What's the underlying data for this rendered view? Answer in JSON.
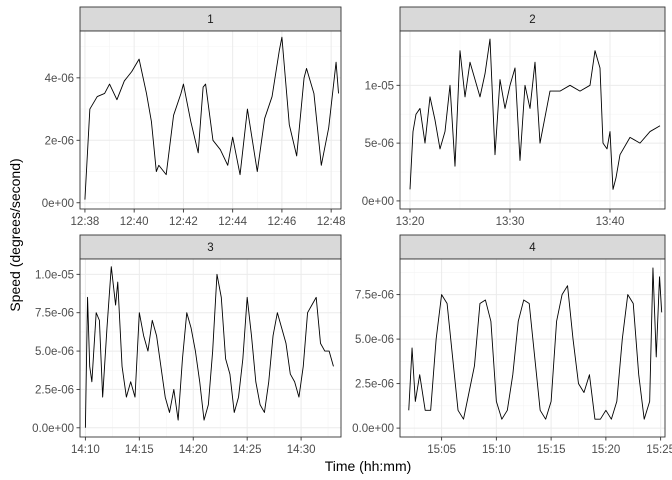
{
  "chart_data": {
    "type": "line",
    "xlabel": "Time (hh:mm)",
    "ylabel": "Speed (degrees/second)",
    "line_color": "#000000",
    "strip_color": "#d9d9d9",
    "panels": [
      {
        "label": "1",
        "xlim": [
          757.8,
          768.4
        ],
        "ylim": [
          -2e-07,
          5.5e-06
        ],
        "x_ticks": [
          758,
          760,
          762,
          764,
          766,
          768
        ],
        "x_tick_labels": [
          "12:38",
          "12:40",
          "12:42",
          "12:44",
          "12:46",
          "12:48"
        ],
        "y_ticks": [
          0,
          2e-06,
          4e-06
        ],
        "y_tick_labels": [
          "0e+00",
          "2e-06",
          "4e-06"
        ],
        "x": [
          758.0,
          758.2,
          758.5,
          758.8,
          759.0,
          759.3,
          759.6,
          759.9,
          760.2,
          760.5,
          760.7,
          760.9,
          761.0,
          761.3,
          761.6,
          761.9,
          762.0,
          762.3,
          762.6,
          762.8,
          762.9,
          763.2,
          763.5,
          763.8,
          764.0,
          764.3,
          764.6,
          764.8,
          765.0,
          765.3,
          765.6,
          765.9,
          766.0,
          766.3,
          766.6,
          766.9,
          767.0,
          767.3,
          767.6,
          767.9,
          768.2,
          768.3
        ],
        "y": [
          1e-07,
          3e-06,
          3.4e-06,
          3.5e-06,
          3.8e-06,
          3.3e-06,
          3.9e-06,
          4.2e-06,
          4.6e-06,
          3.5e-06,
          2.6e-06,
          1e-06,
          1.2e-06,
          9e-07,
          2.8e-06,
          3.5e-06,
          3.8e-06,
          2.6e-06,
          1.6e-06,
          3.7e-06,
          3.8e-06,
          2e-06,
          1.7e-06,
          1.2e-06,
          2.1e-06,
          9e-07,
          3e-06,
          2e-06,
          1e-06,
          2.7e-06,
          3.4e-06,
          4.9e-06,
          5.3e-06,
          2.5e-06,
          1.5e-06,
          4e-06,
          4.3e-06,
          3.5e-06,
          1.2e-06,
          2.4e-06,
          4.5e-06,
          3.5e-06
        ]
      },
      {
        "label": "2",
        "xlim": [
          799.0,
          825.5
        ],
        "ylim": [
          -7e-07,
          1.47e-05
        ],
        "x_ticks": [
          800,
          810,
          820
        ],
        "x_tick_labels": [
          "13:20",
          "13:30",
          "13:40"
        ],
        "y_ticks": [
          0,
          5e-06,
          1e-05
        ],
        "y_tick_labels": [
          "0e+00",
          "5e-06",
          "1e-05"
        ],
        "x": [
          800.0,
          800.3,
          800.6,
          801.0,
          801.5,
          802.0,
          802.5,
          803.0,
          803.5,
          804.0,
          804.5,
          805.0,
          805.5,
          806.0,
          806.5,
          807.0,
          807.5,
          808.0,
          808.5,
          809.0,
          809.5,
          810.0,
          810.5,
          811.0,
          811.5,
          812.0,
          812.5,
          813.0,
          814.0,
          815.0,
          816.0,
          817.0,
          818.0,
          818.5,
          819.0,
          819.3,
          819.7,
          820.0,
          820.3,
          820.6,
          821.0,
          822.0,
          823.0,
          824.0,
          825.0
        ],
        "y": [
          1e-06,
          6e-06,
          7.5e-06,
          8e-06,
          5e-06,
          9e-06,
          7e-06,
          4.5e-06,
          6e-06,
          1e-05,
          3e-06,
          1.3e-05,
          9e-06,
          1.2e-05,
          1.05e-05,
          9e-06,
          1.1e-05,
          1.4e-05,
          4e-06,
          1.05e-05,
          8e-06,
          1e-05,
          1.15e-05,
          3.5e-06,
          1e-05,
          8e-06,
          1.2e-05,
          5e-06,
          9.5e-06,
          9.5e-06,
          1e-05,
          9.5e-06,
          1e-05,
          1.3e-05,
          1.15e-05,
          5e-06,
          4.5e-06,
          6e-06,
          1e-06,
          2e-06,
          4e-06,
          5.5e-06,
          5e-06,
          6e-06,
          6.5e-06
        ]
      },
      {
        "label": "3",
        "xlim": [
          849.5,
          873.7
        ],
        "ylim": [
          -6e-07,
          1.1e-05
        ],
        "x_ticks": [
          850,
          855,
          860,
          865,
          870
        ],
        "x_tick_labels": [
          "14:10",
          "14:15",
          "14:20",
          "14:25",
          "14:30"
        ],
        "y_ticks": [
          0,
          2.5e-06,
          5e-06,
          7.5e-06,
          1e-05
        ],
        "y_tick_labels": [
          "0.0e+00",
          "2.5e-06",
          "5.0e-06",
          "7.5e-06",
          "1.0e-05"
        ],
        "x": [
          850.0,
          850.2,
          850.4,
          850.6,
          851.0,
          851.3,
          851.6,
          852.0,
          852.4,
          852.8,
          853.0,
          853.4,
          853.8,
          854.2,
          854.6,
          855.0,
          855.4,
          855.8,
          856.2,
          856.6,
          857.0,
          857.4,
          857.8,
          858.2,
          858.6,
          859.0,
          859.4,
          859.8,
          860.2,
          860.6,
          861.0,
          861.4,
          861.8,
          862.2,
          862.6,
          863.0,
          863.4,
          863.8,
          864.2,
          864.6,
          865.0,
          865.4,
          865.8,
          866.2,
          866.6,
          867.0,
          867.4,
          867.8,
          868.2,
          868.6,
          869.0,
          869.4,
          869.8,
          870.2,
          870.6,
          871.0,
          871.4,
          871.8,
          872.2,
          872.6,
          873.0
        ],
        "y": [
          0.0,
          8.5e-06,
          4e-06,
          3e-06,
          7.5e-06,
          7e-06,
          2e-06,
          6.5e-06,
          1.05e-05,
          8e-06,
          9.5e-06,
          4e-06,
          2e-06,
          3e-06,
          2e-06,
          7.5e-06,
          6e-06,
          5e-06,
          7e-06,
          6e-06,
          4e-06,
          2e-06,
          1e-06,
          2.5e-06,
          5e-07,
          4.5e-06,
          7.5e-06,
          6.5e-06,
          5e-06,
          3e-06,
          5e-07,
          1.5e-06,
          5e-06,
          1e-05,
          8.5e-06,
          4.5e-06,
          3.5e-06,
          1e-06,
          2e-06,
          4.5e-06,
          8.5e-06,
          6e-06,
          3e-06,
          1.5e-06,
          1e-06,
          3e-06,
          6e-06,
          7.5e-06,
          6.5e-06,
          5.5e-06,
          3.5e-06,
          3e-06,
          2e-06,
          4e-06,
          7.5e-06,
          8e-06,
          8.5e-06,
          5.5e-06,
          5e-06,
          5e-06,
          4e-06
        ]
      },
      {
        "label": "4",
        "xlim": [
          901.2,
          925.4
        ],
        "ylim": [
          -5e-07,
          9.5e-06
        ],
        "x_ticks": [
          905,
          910,
          915,
          920,
          925
        ],
        "x_tick_labels": [
          "15:05",
          "15:10",
          "15:15",
          "15:20",
          "15:25"
        ],
        "y_ticks": [
          0,
          2.5e-06,
          5e-06,
          7.5e-06
        ],
        "y_tick_labels": [
          "0.0e+00",
          "2.5e-06",
          "5.0e-06",
          "7.5e-06"
        ],
        "x": [
          902.0,
          902.3,
          902.6,
          903.0,
          903.5,
          904.0,
          904.5,
          905.0,
          905.5,
          906.0,
          906.5,
          907.0,
          907.5,
          908.0,
          908.5,
          909.0,
          909.5,
          910.0,
          910.5,
          911.0,
          911.5,
          912.0,
          912.5,
          913.0,
          913.5,
          914.0,
          914.5,
          915.0,
          915.5,
          916.0,
          916.5,
          917.0,
          917.5,
          918.0,
          918.5,
          919.0,
          919.5,
          920.0,
          920.5,
          921.0,
          921.5,
          922.0,
          922.5,
          923.0,
          923.5,
          924.0,
          924.3,
          924.6,
          924.9,
          925.1
        ],
        "y": [
          1e-06,
          4.5e-06,
          1.5e-06,
          3e-06,
          1e-06,
          1e-06,
          5e-06,
          7.5e-06,
          7e-06,
          4e-06,
          1e-06,
          5e-07,
          2e-06,
          3.5e-06,
          7e-06,
          7.2e-06,
          6e-06,
          1.5e-06,
          5e-07,
          1e-06,
          3e-06,
          6e-06,
          7.2e-06,
          7e-06,
          4e-06,
          1e-06,
          5e-07,
          1.5e-06,
          6e-06,
          7.5e-06,
          8e-06,
          5e-06,
          2.5e-06,
          2e-06,
          3e-06,
          5e-07,
          5e-07,
          1e-06,
          5e-07,
          1.5e-06,
          5e-06,
          7.5e-06,
          7e-06,
          3e-06,
          5e-07,
          1.5e-06,
          9e-06,
          4e-06,
          8.5e-06,
          6.5e-06
        ]
      }
    ]
  }
}
